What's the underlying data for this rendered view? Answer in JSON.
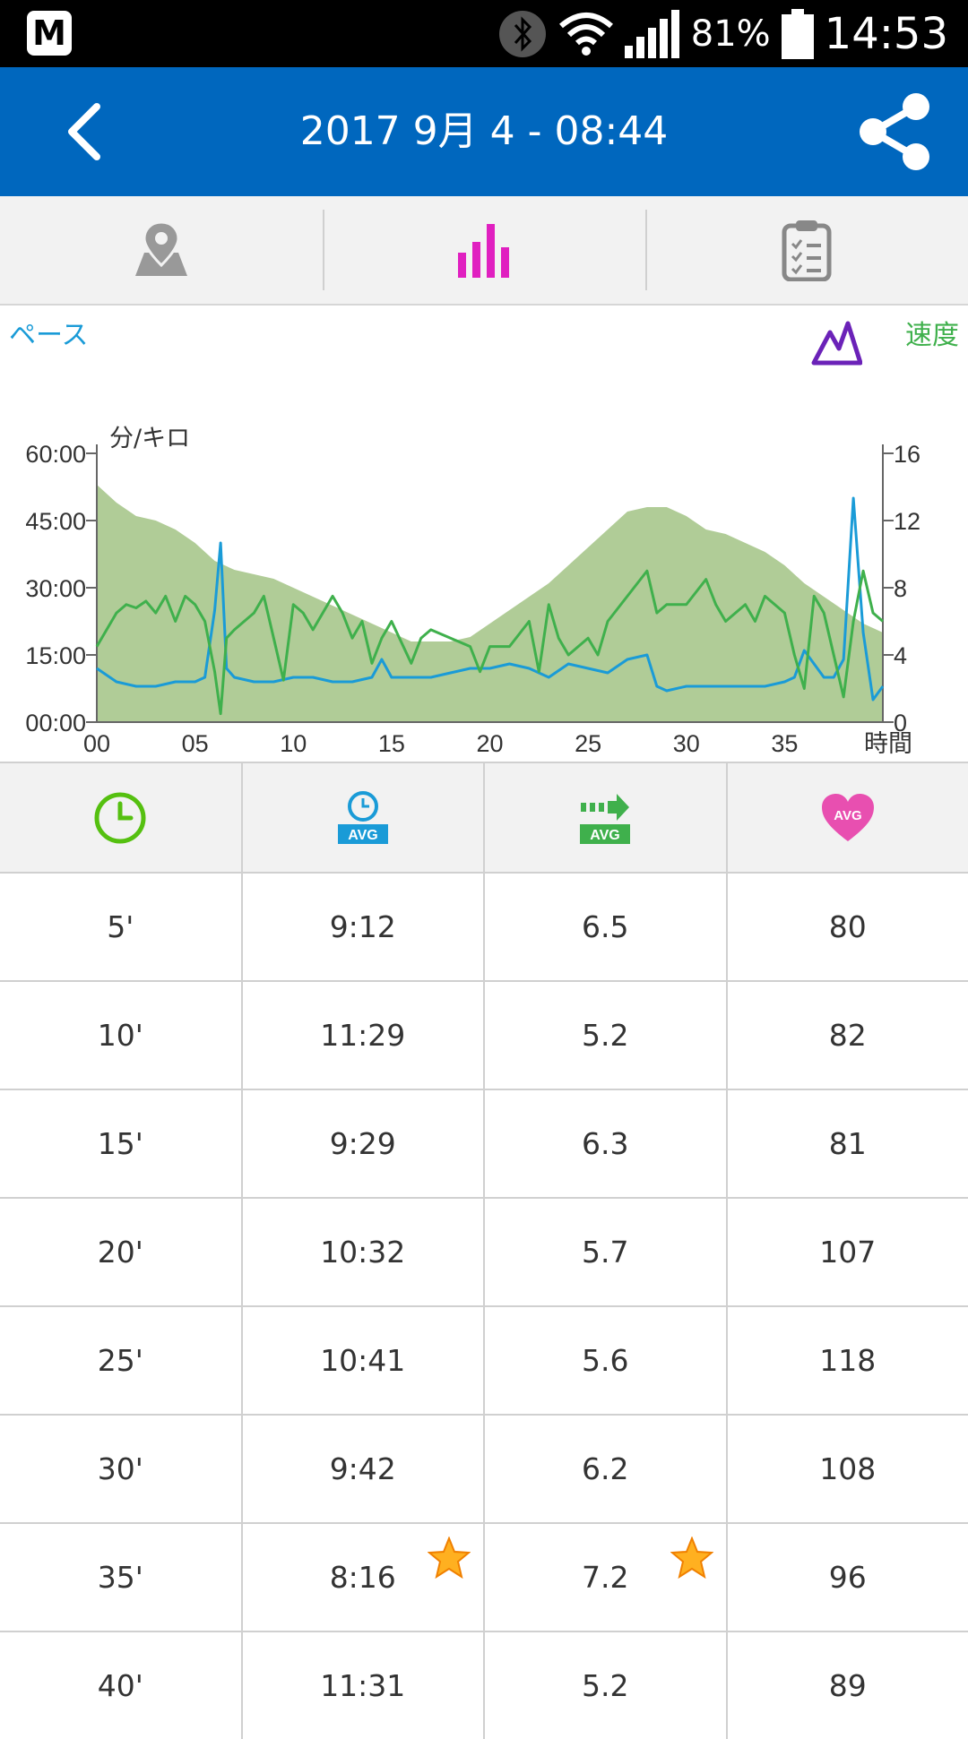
{
  "status": {
    "app_letter": "M",
    "battery": "81%",
    "time": "14:53"
  },
  "header": {
    "title": "2017 9月 4 - 08:44"
  },
  "tabs": [
    {
      "name": "map-tab",
      "icon": "map-pin-icon"
    },
    {
      "name": "chart-tab",
      "icon": "bar-chart-icon",
      "active": true
    },
    {
      "name": "summary-tab",
      "icon": "clipboard-icon"
    }
  ],
  "chart": {
    "left_label": "ペース",
    "right_label": "速度",
    "unit": "分/キロ"
  },
  "chart_data": {
    "type": "line",
    "xlabel": "時間",
    "x_ticks": [
      "00",
      "05",
      "10",
      "15",
      "20",
      "25",
      "30",
      "35"
    ],
    "xlim": [
      0,
      40
    ],
    "y_left_ticks": [
      "60:00",
      "45:00",
      "30:00",
      "15:00",
      "00:00"
    ],
    "y_left_range_minutes": [
      0,
      60
    ],
    "y_right_ticks": [
      "16",
      "12",
      "8",
      "4",
      "0"
    ],
    "y_right_range": [
      0,
      16
    ],
    "elevation": {
      "x": [
        0,
        1,
        2,
        3,
        4,
        5,
        6,
        7,
        8,
        9,
        10,
        11,
        12,
        13,
        14,
        15,
        16,
        17,
        18,
        19,
        20,
        21,
        22,
        23,
        24,
        25,
        26,
        27,
        28,
        29,
        30,
        31,
        32,
        33,
        34,
        35,
        36,
        37,
        38,
        39,
        40
      ],
      "y": [
        53,
        49,
        46,
        45,
        43,
        40,
        36,
        34,
        33,
        32,
        30,
        28,
        26,
        24,
        22,
        20,
        18,
        18,
        18,
        19,
        22,
        25,
        28,
        31,
        35,
        39,
        43,
        47,
        48,
        48,
        46,
        43,
        42,
        40,
        38,
        35,
        31,
        28,
        25,
        22,
        20
      ]
    },
    "series": [
      {
        "name": "pace",
        "color": "#1a9bd7",
        "x": [
          0,
          1,
          2,
          3,
          4,
          5,
          5.5,
          6,
          6.3,
          6.6,
          7,
          8,
          9,
          10,
          11,
          12,
          13,
          14,
          14.5,
          15,
          16,
          17,
          18,
          19,
          20,
          21,
          22,
          23,
          24,
          25,
          26,
          27,
          28,
          28.5,
          29,
          30,
          31,
          32,
          33,
          34,
          35,
          35.5,
          36,
          37,
          37.5,
          38,
          38.5,
          39,
          39.5,
          40
        ],
        "y": [
          12,
          9,
          8,
          8,
          9,
          9,
          10,
          25,
          40,
          12,
          10,
          9,
          9,
          10,
          10,
          9,
          9,
          10,
          14,
          10,
          10,
          10,
          11,
          12,
          12,
          13,
          12,
          10,
          13,
          12,
          11,
          14,
          15,
          8,
          7,
          8,
          8,
          8,
          8,
          8,
          9,
          10,
          16,
          10,
          10,
          14,
          50,
          20,
          5,
          8
        ]
      },
      {
        "name": "speed",
        "color": "#3fb04c",
        "x": [
          0,
          1,
          1.5,
          2,
          2.5,
          3,
          3.5,
          4,
          4.5,
          5,
          5.5,
          6,
          6.3,
          6.6,
          7,
          8,
          8.5,
          9,
          9.5,
          10,
          10.5,
          11,
          12,
          12.5,
          13,
          13.5,
          14,
          14.5,
          15,
          16,
          16.5,
          17,
          18,
          19,
          19.5,
          20,
          21,
          22,
          22.5,
          23,
          23.5,
          24,
          25,
          25.5,
          26,
          27,
          28,
          28.5,
          29,
          30,
          31,
          31.5,
          32,
          33,
          33.5,
          34,
          35,
          35.5,
          36,
          36.5,
          37,
          37.5,
          38,
          38.5,
          39,
          39.5,
          40
        ],
        "y": [
          4.5,
          6.5,
          7,
          6.8,
          7.2,
          6.5,
          7.5,
          6,
          7.5,
          7,
          6,
          3,
          0.5,
          5,
          5.5,
          6.5,
          7.5,
          5,
          2.5,
          7,
          6.5,
          5.5,
          7.5,
          6.5,
          5,
          6,
          3.5,
          5,
          6,
          3.5,
          5,
          5.5,
          5,
          4.5,
          3,
          4.5,
          4.5,
          6,
          3,
          7,
          5,
          4,
          5,
          4,
          6,
          7.5,
          9,
          6.5,
          7,
          7,
          8.5,
          7,
          6,
          7,
          6,
          7.5,
          6.5,
          4,
          2,
          7.5,
          6.5,
          4,
          1.5,
          6,
          9,
          6.5,
          6
        ]
      }
    ]
  },
  "table": {
    "header_icons": [
      "clock-icon",
      "avg-pace-icon",
      "avg-speed-icon",
      "avg-heart-rate-icon"
    ],
    "rows": [
      {
        "time": "5'",
        "pace": "9:12",
        "speed": "6.5",
        "hr": "80"
      },
      {
        "time": "10'",
        "pace": "11:29",
        "speed": "5.2",
        "hr": "82"
      },
      {
        "time": "15'",
        "pace": "9:29",
        "speed": "6.3",
        "hr": "81"
      },
      {
        "time": "20'",
        "pace": "10:32",
        "speed": "5.7",
        "hr": "107"
      },
      {
        "time": "25'",
        "pace": "10:41",
        "speed": "5.6",
        "hr": "118"
      },
      {
        "time": "30'",
        "pace": "9:42",
        "speed": "6.2",
        "hr": "108"
      },
      {
        "time": "35'",
        "pace": "8:16",
        "speed": "7.2",
        "hr": "96",
        "best": true
      },
      {
        "time": "40'",
        "pace": "11:31",
        "speed": "5.2",
        "hr": "89"
      }
    ]
  },
  "colors": {
    "appbar": "#0067be",
    "accent": "#e020c0",
    "pace": "#1a9bd7",
    "speed": "#3fb04c",
    "elevation": "#b0cc97"
  }
}
